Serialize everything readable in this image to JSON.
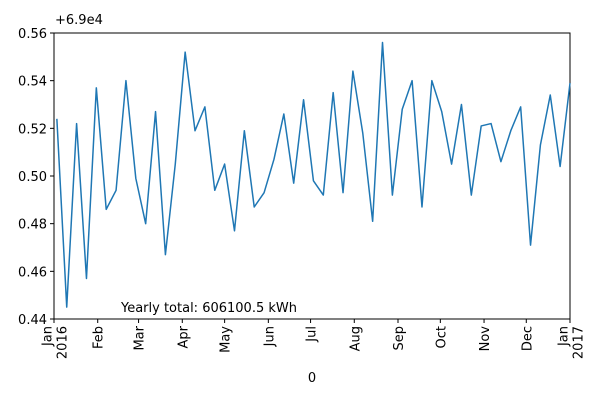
{
  "chart_data": {
    "type": "line",
    "offset_label": "+6.9e4",
    "annotation": "Yearly total: 606100.5 kWh",
    "x_label": "0",
    "x": [
      0,
      1,
      2,
      3,
      4,
      5,
      6,
      7,
      8,
      9,
      10,
      11,
      12,
      13,
      14,
      15,
      16,
      17,
      18,
      19,
      20,
      21,
      22,
      23,
      24,
      25,
      26,
      27,
      28,
      29,
      30,
      31,
      32,
      33,
      34,
      35,
      36,
      37,
      38,
      39,
      40,
      41,
      42,
      43,
      44,
      45,
      46,
      47,
      48,
      49,
      50,
      51,
      52
    ],
    "series": [
      {
        "color": "#1f77b4",
        "values": [
          0.524,
          0.445,
          0.522,
          0.457,
          0.537,
          0.486,
          0.494,
          0.54,
          0.499,
          0.48,
          0.527,
          0.467,
          0.505,
          0.552,
          0.519,
          0.529,
          0.494,
          0.505,
          0.477,
          0.519,
          0.487,
          0.493,
          0.507,
          0.526,
          0.497,
          0.532,
          0.498,
          0.492,
          0.535,
          0.493,
          0.544,
          0.518,
          0.481,
          0.556,
          0.492,
          0.528,
          0.54,
          0.487,
          0.54,
          0.527,
          0.505,
          0.53,
          0.492,
          0.521,
          0.522,
          0.506,
          0.519,
          0.529,
          0.471,
          0.513,
          0.534,
          0.504,
          0.539
        ]
      }
    ],
    "xlim": [
      -0.29,
      52
    ],
    "xticks": [
      {
        "value": -0.29,
        "label": "Jan\n2016"
      },
      {
        "value": 4.14,
        "label": "Feb"
      },
      {
        "value": 8.28,
        "label": "Mar"
      },
      {
        "value": 12.71,
        "label": "Apr"
      },
      {
        "value": 17,
        "label": "May"
      },
      {
        "value": 21.43,
        "label": "Jun"
      },
      {
        "value": 25.71,
        "label": "Jul"
      },
      {
        "value": 30.14,
        "label": "Aug"
      },
      {
        "value": 34.57,
        "label": "Sep"
      },
      {
        "value": 38.86,
        "label": "Oct"
      },
      {
        "value": 43.29,
        "label": "Nov"
      },
      {
        "value": 47.57,
        "label": "Dec"
      },
      {
        "value": 52,
        "label": "Jan\n2017"
      }
    ],
    "ylim": [
      0.44,
      0.56
    ],
    "yticks": [
      0.44,
      0.46,
      0.48,
      {
        "value": 0.5,
        "label": "0.50"
      },
      0.52,
      0.54,
      0.56
    ]
  }
}
